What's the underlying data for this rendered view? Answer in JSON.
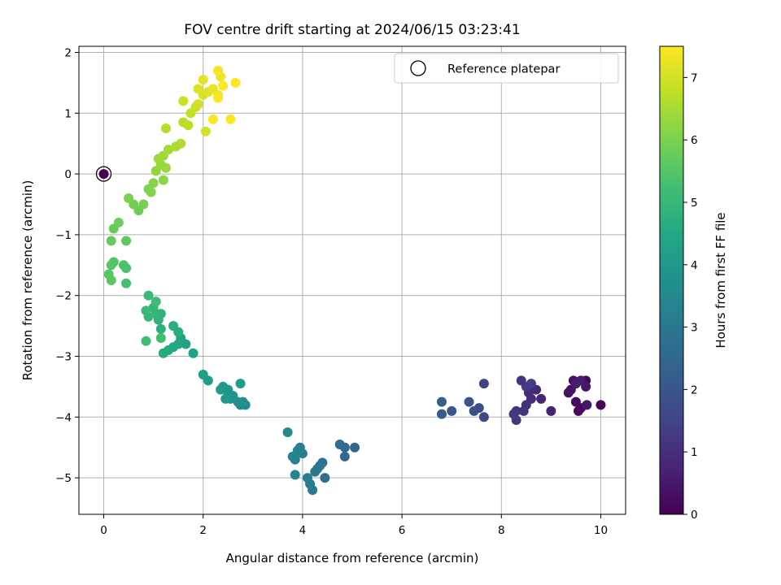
{
  "chart_data": {
    "type": "scatter",
    "title": "FOV centre drift starting at 2024/06/15 03:23:41",
    "xlabel": "Angular distance from reference (arcmin)",
    "ylabel": "Rotation from reference (arcmin)",
    "colorbar_label": "Hours from first FF file",
    "xlim": [
      -0.5,
      10.5
    ],
    "ylim": [
      -5.6,
      2.1
    ],
    "xticks": [
      0,
      2,
      4,
      6,
      8,
      10
    ],
    "yticks": [
      -5,
      -4,
      -3,
      -2,
      -1,
      0,
      1,
      2
    ],
    "colorbar_range": [
      0,
      7.5
    ],
    "colorbar_ticks": [
      0,
      1,
      2,
      3,
      4,
      5,
      6,
      7
    ],
    "colormap": "viridis",
    "grid": true,
    "legend_position": "top-right",
    "reference": {
      "label": "Reference platepar",
      "x": 0,
      "y": 0,
      "hours": 0
    },
    "points": [
      [
        10.0,
        -3.8,
        0.05
      ],
      [
        9.7,
        -3.4,
        0.1
      ],
      [
        9.6,
        -3.85,
        0.15
      ],
      [
        9.55,
        -3.9,
        0.2
      ],
      [
        9.5,
        -3.75,
        0.25
      ],
      [
        9.45,
        -3.4,
        0.3
      ],
      [
        9.4,
        -3.55,
        0.35
      ],
      [
        9.35,
        -3.6,
        0.4
      ],
      [
        9.7,
        -3.5,
        0.45
      ],
      [
        9.72,
        -3.8,
        0.5
      ],
      [
        9.6,
        -3.4,
        0.55
      ],
      [
        9.5,
        -3.45,
        0.6
      ],
      [
        9.0,
        -3.9,
        0.7
      ],
      [
        8.8,
        -3.7,
        0.8
      ],
      [
        8.7,
        -3.55,
        0.85
      ],
      [
        8.6,
        -3.7,
        0.9
      ],
      [
        8.55,
        -3.6,
        0.95
      ],
      [
        8.5,
        -3.8,
        1.0
      ],
      [
        8.45,
        -3.9,
        1.05
      ],
      [
        8.4,
        -3.4,
        1.1
      ],
      [
        8.3,
        -3.9,
        1.15
      ],
      [
        8.25,
        -3.95,
        1.2
      ],
      [
        8.3,
        -4.05,
        1.25
      ],
      [
        8.5,
        -3.5,
        1.3
      ],
      [
        8.6,
        -3.45,
        1.35
      ],
      [
        7.65,
        -3.45,
        1.5
      ],
      [
        7.65,
        -4.0,
        1.6
      ],
      [
        7.55,
        -3.85,
        1.7
      ],
      [
        7.45,
        -3.9,
        1.8
      ],
      [
        7.35,
        -3.75,
        1.9
      ],
      [
        7.0,
        -3.9,
        2.0
      ],
      [
        6.8,
        -3.95,
        2.1
      ],
      [
        6.8,
        -3.75,
        2.2
      ],
      [
        5.05,
        -4.5,
        2.5
      ],
      [
        4.85,
        -4.5,
        2.55
      ],
      [
        4.85,
        -4.65,
        2.6
      ],
      [
        4.75,
        -4.45,
        2.65
      ],
      [
        4.45,
        -5.0,
        2.7
      ],
      [
        4.4,
        -4.75,
        2.8
      ],
      [
        4.3,
        -4.85,
        2.85
      ],
      [
        4.35,
        -4.8,
        2.9
      ],
      [
        4.25,
        -4.9,
        3.0
      ],
      [
        4.2,
        -5.2,
        3.05
      ],
      [
        4.15,
        -5.1,
        3.1
      ],
      [
        4.1,
        -5.0,
        3.15
      ],
      [
        4.0,
        -4.6,
        3.2
      ],
      [
        3.95,
        -4.5,
        3.25
      ],
      [
        3.9,
        -4.55,
        3.3
      ],
      [
        3.85,
        -4.7,
        3.35
      ],
      [
        3.8,
        -4.65,
        3.4
      ],
      [
        3.85,
        -4.95,
        3.45
      ],
      [
        3.7,
        -4.25,
        3.5
      ],
      [
        2.85,
        -3.8,
        3.6
      ],
      [
        2.75,
        -3.8,
        3.65
      ],
      [
        2.8,
        -3.75,
        3.7
      ],
      [
        2.7,
        -3.75,
        3.75
      ],
      [
        2.6,
        -3.65,
        3.8
      ],
      [
        2.5,
        -3.6,
        3.85
      ],
      [
        2.55,
        -3.7,
        3.9
      ],
      [
        2.5,
        -3.55,
        3.95
      ],
      [
        2.4,
        -3.5,
        4.0
      ],
      [
        2.35,
        -3.55,
        4.05
      ],
      [
        2.45,
        -3.7,
        4.1
      ],
      [
        2.75,
        -3.45,
        4.15
      ],
      [
        2.1,
        -3.4,
        4.2
      ],
      [
        2.0,
        -3.3,
        4.25
      ],
      [
        1.8,
        -2.95,
        4.3
      ],
      [
        1.65,
        -2.8,
        4.35
      ],
      [
        1.55,
        -2.7,
        4.4
      ],
      [
        1.5,
        -2.8,
        4.45
      ],
      [
        1.4,
        -2.85,
        4.5
      ],
      [
        1.3,
        -2.9,
        4.55
      ],
      [
        1.2,
        -2.95,
        4.6
      ],
      [
        1.5,
        -2.6,
        4.65
      ],
      [
        1.4,
        -2.5,
        4.7
      ],
      [
        1.15,
        -2.55,
        4.75
      ],
      [
        1.1,
        -2.4,
        4.8
      ],
      [
        1.15,
        -2.3,
        4.85
      ],
      [
        1.05,
        -2.3,
        4.9
      ],
      [
        1.0,
        -2.2,
        4.95
      ],
      [
        0.9,
        -2.35,
        5.0
      ],
      [
        0.85,
        -2.25,
        5.05
      ],
      [
        0.9,
        -2.0,
        5.1
      ],
      [
        1.05,
        -2.1,
        5.15
      ],
      [
        0.85,
        -2.75,
        5.2
      ],
      [
        1.15,
        -2.7,
        5.25
      ],
      [
        0.45,
        -1.8,
        5.3
      ],
      [
        0.45,
        -1.55,
        5.35
      ],
      [
        0.4,
        -1.5,
        5.4
      ],
      [
        0.2,
        -1.45,
        5.45
      ],
      [
        0.15,
        -1.5,
        5.5
      ],
      [
        0.1,
        -1.65,
        5.55
      ],
      [
        0.15,
        -1.75,
        5.6
      ],
      [
        0.45,
        -1.1,
        5.65
      ],
      [
        0.15,
        -1.1,
        5.7
      ],
      [
        0.2,
        -0.9,
        5.75
      ],
      [
        0.3,
        -0.8,
        5.8
      ],
      [
        0.7,
        -0.6,
        5.85
      ],
      [
        0.6,
        -0.5,
        5.9
      ],
      [
        0.8,
        -0.5,
        5.95
      ],
      [
        0.5,
        -0.4,
        6.0
      ],
      [
        0.9,
        -0.25,
        6.05
      ],
      [
        0.95,
        -0.3,
        6.1
      ],
      [
        1.0,
        -0.15,
        6.15
      ],
      [
        1.2,
        -0.1,
        6.2
      ],
      [
        1.05,
        0.05,
        6.25
      ],
      [
        1.15,
        0.15,
        6.3
      ],
      [
        1.25,
        0.1,
        6.35
      ],
      [
        1.1,
        0.25,
        6.4
      ],
      [
        1.2,
        0.3,
        6.45
      ],
      [
        1.3,
        0.4,
        6.5
      ],
      [
        1.45,
        0.45,
        6.55
      ],
      [
        1.55,
        0.5,
        6.6
      ],
      [
        1.25,
        0.75,
        6.65
      ],
      [
        1.6,
        0.85,
        6.7
      ],
      [
        1.7,
        0.8,
        6.75
      ],
      [
        1.75,
        1.0,
        6.8
      ],
      [
        1.85,
        1.1,
        6.85
      ],
      [
        1.6,
        1.2,
        6.9
      ],
      [
        1.9,
        1.15,
        6.95
      ],
      [
        2.05,
        0.7,
        7.0
      ],
      [
        2.0,
        1.3,
        7.05
      ],
      [
        2.1,
        1.35,
        7.1
      ],
      [
        1.9,
        1.4,
        7.15
      ],
      [
        2.0,
        1.55,
        7.2
      ],
      [
        2.2,
        1.4,
        7.25
      ],
      [
        2.3,
        1.3,
        7.3
      ],
      [
        2.35,
        1.6,
        7.35
      ],
      [
        2.3,
        1.7,
        7.4
      ],
      [
        2.55,
        0.9,
        7.45
      ],
      [
        2.2,
        0.9,
        7.5
      ],
      [
        2.4,
        1.45,
        7.5
      ],
      [
        2.65,
        1.5,
        7.5
      ],
      [
        2.3,
        1.25,
        7.45
      ]
    ]
  }
}
